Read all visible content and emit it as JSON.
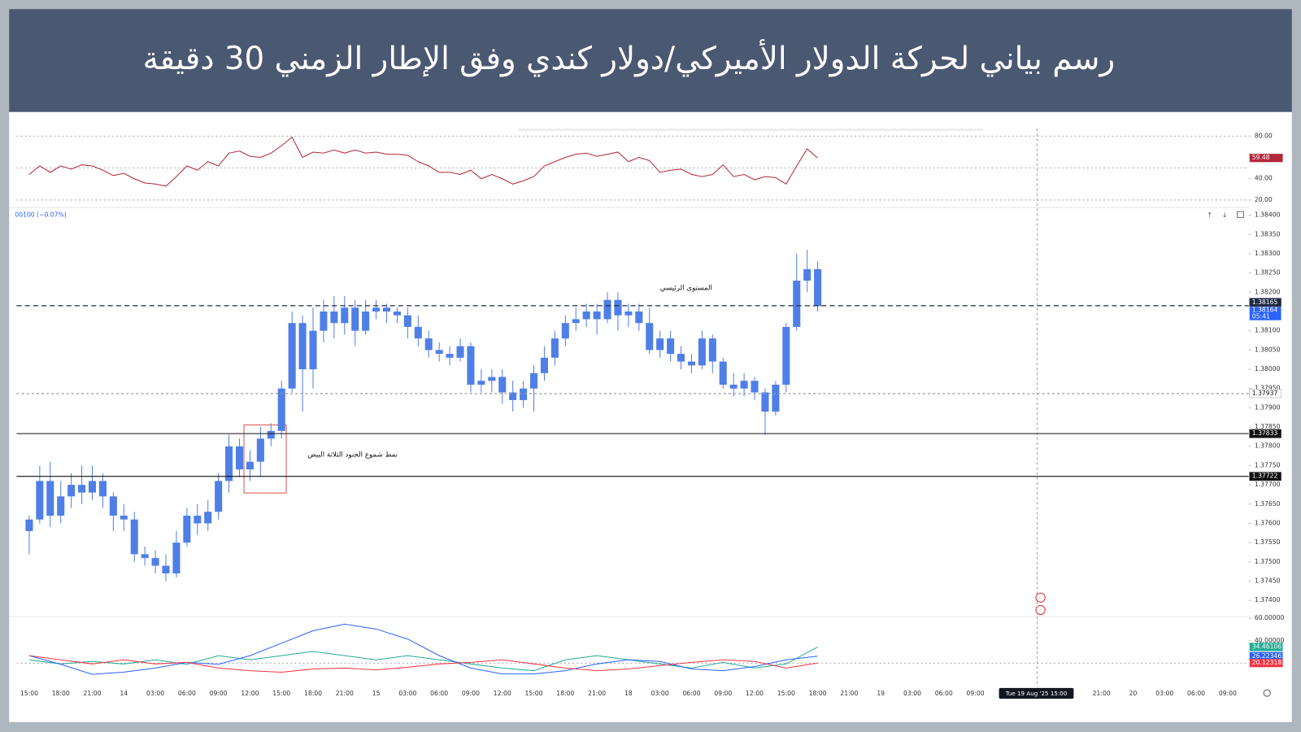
{
  "header": {
    "title": "رسم بياني لحركة الدولار الأميركي/دولار كندي وفق الإطار الزمني 30 دقيقة"
  },
  "chart_data": [
    {
      "type": "line",
      "xlim": [
        -1.2,
        116
      ],
      "ylim": [
        13,
        87
      ],
      "yticks": [
        {
          "value": 80,
          "label": "80.00"
        },
        {
          "value": 40,
          "label": "40.00"
        },
        {
          "value": 20,
          "label": "20.00"
        }
      ],
      "bands": [
        80,
        50,
        20
      ],
      "series": [
        {
          "color": "#b2283b",
          "values": [
            44,
            52,
            46,
            52,
            49,
            53,
            52,
            48,
            43,
            45,
            40,
            36,
            35,
            33,
            42,
            52,
            48,
            56,
            52,
            64,
            66,
            61,
            60,
            64,
            71,
            79,
            60,
            65,
            64,
            67,
            64,
            67,
            64,
            65,
            63,
            63,
            62,
            56,
            52,
            46,
            46,
            44,
            48,
            40,
            44,
            40,
            35,
            38,
            42,
            52,
            56,
            60,
            63,
            64,
            61,
            63,
            65,
            56,
            60,
            57,
            46,
            48,
            49,
            44,
            42,
            44,
            53,
            42,
            44,
            39,
            42,
            41,
            35,
            52,
            68,
            59.48
          ]
        }
      ]
    },
    {
      "type": "candlestick",
      "info": "00100 (−0.07%)",
      "color": "#4f7fe6",
      "xlim": [
        -1.2,
        116
      ],
      "ylim": [
        1.3736,
        1.3842
      ],
      "yticks": [
        {
          "value": 1.374,
          "label": "1.37400"
        },
        {
          "value": 1.3745,
          "label": "1.37450"
        },
        {
          "value": 1.375,
          "label": "1.37500"
        },
        {
          "value": 1.3755,
          "label": "1.37550"
        },
        {
          "value": 1.376,
          "label": "1.37600"
        },
        {
          "value": 1.3765,
          "label": "1.37650"
        },
        {
          "value": 1.377,
          "label": "1.37700"
        },
        {
          "value": 1.3775,
          "label": "1.37750"
        },
        {
          "value": 1.378,
          "label": "1.37800"
        },
        {
          "value": 1.3785,
          "label": "1.37850"
        },
        {
          "value": 1.379,
          "label": "1.37900"
        },
        {
          "value": 1.3795,
          "label": "1.37950"
        },
        {
          "value": 1.38,
          "label": "1.38000"
        },
        {
          "value": 1.3805,
          "label": "1.38050"
        },
        {
          "value": 1.381,
          "label": "1.38100"
        },
        {
          "value": 1.382,
          "label": "1.38200"
        },
        {
          "value": 1.3825,
          "label": "1.38250"
        },
        {
          "value": 1.383,
          "label": "1.38300"
        },
        {
          "value": 1.3835,
          "label": "1.38350"
        },
        {
          "value": 1.384,
          "label": "1.38400"
        }
      ],
      "xticks": [
        {
          "value": 0,
          "label": "15:00"
        },
        {
          "value": 3,
          "label": "18:00"
        },
        {
          "value": 6,
          "label": "21:00"
        },
        {
          "value": 9,
          "label": "14"
        },
        {
          "value": 12,
          "label": "03:00"
        },
        {
          "value": 15,
          "label": "06:00"
        },
        {
          "value": 18,
          "label": "09:00"
        },
        {
          "value": 21,
          "label": "12:00"
        },
        {
          "value": 24,
          "label": "15:00"
        },
        {
          "value": 27,
          "label": "18:00"
        },
        {
          "value": 30,
          "label": "21:00"
        },
        {
          "value": 33,
          "label": "15"
        },
        {
          "value": 36,
          "label": "03:00"
        },
        {
          "value": 39,
          "label": "06:00"
        },
        {
          "value": 42,
          "label": "09:00"
        },
        {
          "value": 45,
          "label": "12:00"
        },
        {
          "value": 48,
          "label": "15:00"
        },
        {
          "value": 51,
          "label": "18:00"
        },
        {
          "value": 54,
          "label": "21:00"
        },
        {
          "value": 57,
          "label": "18"
        },
        {
          "value": 60,
          "label": "03:00"
        },
        {
          "value": 63,
          "label": "06:00"
        },
        {
          "value": 66,
          "label": "09:00"
        },
        {
          "value": 69,
          "label": "12:00"
        },
        {
          "value": 72,
          "label": "15:00"
        },
        {
          "value": 75,
          "label": "18:00"
        },
        {
          "value": 78,
          "label": "21:00"
        },
        {
          "value": 81,
          "label": "19"
        },
        {
          "value": 84,
          "label": "03:00"
        },
        {
          "value": 87,
          "label": "06:00"
        },
        {
          "value": 90,
          "label": "09:00"
        },
        {
          "value": 102,
          "label": "21:00"
        },
        {
          "value": 105,
          "label": "20"
        },
        {
          "value": 108,
          "label": "03:00"
        },
        {
          "value": 111,
          "label": "06:00"
        },
        {
          "value": 114,
          "label": "09:00"
        }
      ],
      "open": [
        1.3758,
        1.3761,
        1.3771,
        1.3762,
        1.3767,
        1.377,
        1.3768,
        1.3771,
        1.3767,
        1.3762,
        1.3761,
        1.3752,
        1.3751,
        1.3749,
        1.3747,
        1.3755,
        1.3762,
        1.376,
        1.3763,
        1.3771,
        1.378,
        1.3774,
        1.3776,
        1.3782,
        1.3784,
        1.3795,
        1.3812,
        1.38,
        1.381,
        1.3815,
        1.3812,
        1.3816,
        1.381,
        1.3815,
        1.3816,
        1.3815,
        1.3814,
        1.3811,
        1.3808,
        1.3805,
        1.3804,
        1.3803,
        1.3806,
        1.3796,
        1.3797,
        1.3798,
        1.3794,
        1.3792,
        1.3795,
        1.3799,
        1.3803,
        1.3808,
        1.3812,
        1.3813,
        1.3815,
        1.3813,
        1.3818,
        1.3814,
        1.3815,
        1.3812,
        1.3805,
        1.3808,
        1.3804,
        1.3802,
        1.3801,
        1.3808,
        1.3802,
        1.3796,
        1.3795,
        1.3797,
        1.3794,
        1.3789,
        1.3796,
        1.3811,
        1.3823,
        1.3826
      ],
      "high": [
        1.3762,
        1.3775,
        1.3776,
        1.3771,
        1.3773,
        1.3775,
        1.3775,
        1.3773,
        1.3768,
        1.3765,
        1.3763,
        1.3754,
        1.3753,
        1.3752,
        1.3758,
        1.3764,
        1.3765,
        1.3766,
        1.3773,
        1.3783,
        1.3782,
        1.3779,
        1.3785,
        1.3786,
        1.3797,
        1.3815,
        1.3814,
        1.3816,
        1.3818,
        1.3819,
        1.3819,
        1.3818,
        1.3818,
        1.3818,
        1.3817,
        1.3816,
        1.3816,
        1.3814,
        1.381,
        1.3807,
        1.3806,
        1.3808,
        1.3807,
        1.38,
        1.38,
        1.38,
        1.3797,
        1.3797,
        1.3801,
        1.3806,
        1.381,
        1.3814,
        1.3816,
        1.3817,
        1.3817,
        1.382,
        1.382,
        1.3817,
        1.3817,
        1.3816,
        1.381,
        1.381,
        1.3806,
        1.3804,
        1.381,
        1.3809,
        1.3803,
        1.3799,
        1.3799,
        1.3798,
        1.3795,
        1.3797,
        1.3812,
        1.383,
        1.3831,
        1.3828
      ],
      "low": [
        1.3752,
        1.376,
        1.3759,
        1.376,
        1.3764,
        1.3765,
        1.3766,
        1.3764,
        1.3758,
        1.3758,
        1.375,
        1.3749,
        1.3747,
        1.3745,
        1.3746,
        1.3754,
        1.3757,
        1.3758,
        1.3761,
        1.3768,
        1.3772,
        1.3771,
        1.3772,
        1.378,
        1.3782,
        1.3794,
        1.3789,
        1.3795,
        1.3807,
        1.3808,
        1.3809,
        1.3806,
        1.3809,
        1.3813,
        1.3812,
        1.3812,
        1.3808,
        1.3806,
        1.3803,
        1.3802,
        1.3801,
        1.3802,
        1.3794,
        1.3794,
        1.3794,
        1.3791,
        1.3789,
        1.379,
        1.3789,
        1.3797,
        1.3801,
        1.3806,
        1.381,
        1.3811,
        1.3809,
        1.3812,
        1.381,
        1.3811,
        1.381,
        1.3804,
        1.3803,
        1.3802,
        1.38,
        1.3799,
        1.38,
        1.3799,
        1.3795,
        1.3793,
        1.3793,
        1.3792,
        1.3783,
        1.3788,
        1.3794,
        1.381,
        1.382,
        1.3815
      ],
      "close": [
        1.3761,
        1.3771,
        1.3762,
        1.3767,
        1.377,
        1.3768,
        1.3771,
        1.3767,
        1.3762,
        1.3761,
        1.3752,
        1.3751,
        1.3749,
        1.3747,
        1.3755,
        1.3762,
        1.376,
        1.3763,
        1.3771,
        1.378,
        1.3774,
        1.3776,
        1.3782,
        1.3784,
        1.3795,
        1.3812,
        1.38,
        1.381,
        1.3815,
        1.3812,
        1.3816,
        1.381,
        1.3815,
        1.3816,
        1.3815,
        1.3814,
        1.3811,
        1.3808,
        1.3805,
        1.3804,
        1.3803,
        1.3806,
        1.3796,
        1.3797,
        1.3798,
        1.3794,
        1.3792,
        1.3795,
        1.3799,
        1.3803,
        1.3808,
        1.3812,
        1.3813,
        1.3815,
        1.3813,
        1.3818,
        1.3814,
        1.3815,
        1.3812,
        1.3805,
        1.3808,
        1.3804,
        1.3802,
        1.3801,
        1.3808,
        1.3802,
        1.3796,
        1.3795,
        1.3797,
        1.3794,
        1.3789,
        1.3796,
        1.3811,
        1.3823,
        1.3826,
        1.38164
      ],
      "levels": [
        {
          "value": 1.38165,
          "style": "dashed",
          "color": "#1f2a44",
          "label_color": "#1f2a44",
          "text_color": "#ffffff"
        },
        {
          "value": 1.37937,
          "style": "dotted",
          "color": "#9a9a9a",
          "label_color": "#ffffff",
          "text_color": "#111111"
        },
        {
          "value": 1.37833,
          "style": "solid",
          "color": "#111111",
          "label_color": "#111111",
          "text_color": "#ffffff"
        },
        {
          "value": 1.37722,
          "style": "solid",
          "color": "#111111",
          "label_color": "#111111",
          "text_color": "#ffffff"
        }
      ],
      "last_price": 1.38164,
      "countdown": "05:41",
      "last_color": "#2962ff",
      "annotations": [
        "المستوى الرئيسي",
        "نمط شموع الجنود الثلاثة البيض"
      ],
      "crosshair_label": "Tue 19 Aug '25   15:00"
    },
    {
      "type": "line",
      "xlim": [
        -1.2,
        116
      ],
      "ylim": [
        3,
        60
      ],
      "yticks": [
        {
          "value": 60,
          "label": "60.00000"
        },
        {
          "value": 40,
          "label": "40.00000"
        }
      ],
      "bands": [
        20
      ],
      "x": [
        0,
        3,
        6,
        9,
        12,
        15,
        18,
        21,
        24,
        27,
        30,
        33,
        36,
        39,
        42,
        45,
        48,
        51,
        54,
        57,
        60,
        63,
        66,
        69,
        72,
        75
      ],
      "series": [
        {
          "color": "#22ab94",
          "values": [
            23,
            19.3,
            21.5,
            19.3,
            23,
            19,
            26.7,
            23,
            26.7,
            30.4,
            26.7,
            23,
            26.7,
            23,
            19.3,
            15.6,
            13.3,
            23,
            26.7,
            23,
            19.3,
            15.6,
            20.7,
            15.6,
            19.3,
            34.46106
          ]
        },
        {
          "color": "#2962ff",
          "values": [
            26.7,
            19,
            10,
            12,
            15.6,
            20.7,
            19,
            26.7,
            37.8,
            48.9,
            54.8,
            50.4,
            41.5,
            26.7,
            15.6,
            10.4,
            10.4,
            13.3,
            19.3,
            23,
            21.5,
            14.8,
            13.3,
            17,
            23,
            26.22346
          ]
        },
        {
          "color": "#f23645",
          "values": [
            26.7,
            23,
            19.3,
            23,
            19.3,
            20.7,
            15.6,
            13.3,
            11.9,
            14.8,
            15.6,
            14,
            16.3,
            19.3,
            20.7,
            23,
            19.3,
            15.6,
            13.3,
            14.8,
            17.8,
            20.7,
            23,
            21.5,
            15.6,
            20.12318
          ]
        }
      ]
    }
  ]
}
